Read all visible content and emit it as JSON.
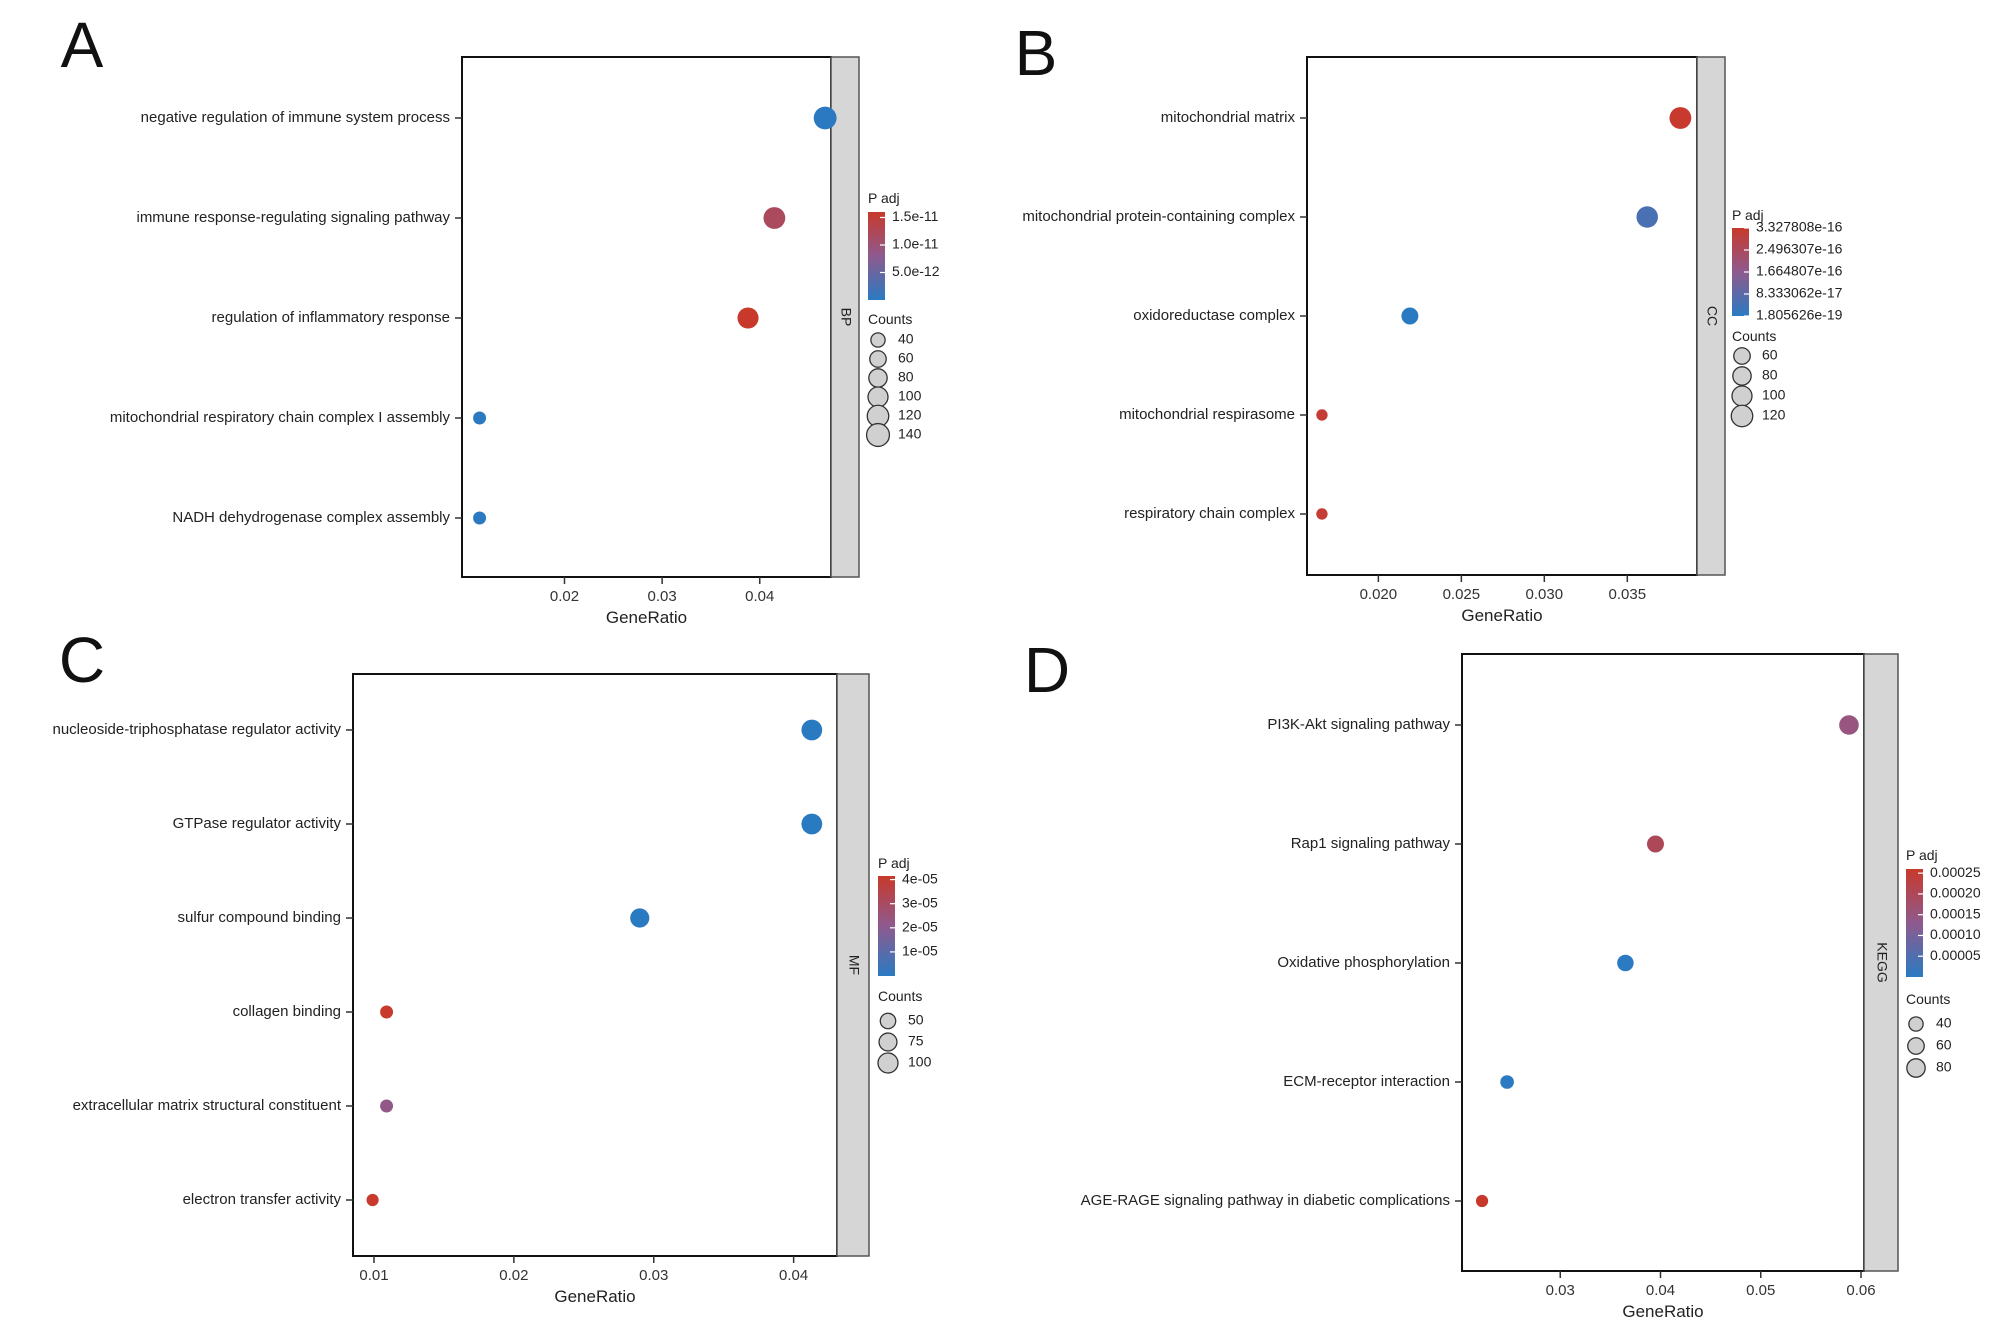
{
  "chart_data": [
    {
      "panel": "A",
      "type": "scatter",
      "title": "",
      "xlabel": "GeneRatio",
      "ylabel": "",
      "facet": "BP",
      "xlim": [
        0.0095,
        0.0473
      ],
      "xticks": [
        0.02,
        0.03,
        0.04
      ],
      "xtick_labels": [
        "0.02",
        "0.03",
        "0.04"
      ],
      "categories": [
        "negative regulation of immune system process",
        "immune response-regulating signaling pathway",
        "regulation of inflammatory response",
        "mitochondrial respiratory chain complex I assembly",
        "NADH dehydrogenase complex assembly"
      ],
      "x": [
        0.0467,
        0.0415,
        0.0388,
        0.0113,
        0.0113
      ],
      "counts": [
        140,
        125,
        115,
        30,
        30
      ],
      "p_adj": [
        1e-13,
        1.2e-11,
        1.6e-11,
        1e-13,
        1e-13
      ],
      "color_legend": {
        "title": "P adj",
        "min": 0,
        "max": 1.6e-11,
        "ticks": [
          1.5e-11,
          1e-11,
          5e-12
        ],
        "labels": [
          "1.5e-11",
          "1.0e-11",
          "5.0e-12"
        ]
      },
      "size_legend": {
        "title": "Counts",
        "values": [
          40,
          60,
          80,
          100,
          120,
          140
        ],
        "labels": [
          "40",
          "60",
          "80",
          "100",
          "120",
          "140"
        ]
      }
    },
    {
      "panel": "B",
      "type": "scatter",
      "title": "",
      "xlabel": "GeneRatio",
      "ylabel": "",
      "facet": "CC",
      "xlim": [
        0.0157,
        0.0392
      ],
      "xticks": [
        0.02,
        0.025,
        0.03,
        0.035
      ],
      "xtick_labels": [
        "0.020",
        "0.025",
        "0.030",
        "0.035"
      ],
      "categories": [
        "mitochondrial matrix",
        "mitochondrial protein-containing complex",
        "oxidoreductase complex",
        "mitochondrial respirasome",
        "respiratory chain complex"
      ],
      "x": [
        0.0382,
        0.0362,
        0.0219,
        0.0166,
        0.0166
      ],
      "counts": [
        125,
        120,
        65,
        20,
        20
      ],
      "p_adj": [
        3.3e-16,
        5e-17,
        1.8e-19,
        3.2e-16,
        3.2e-16
      ],
      "color_legend": {
        "title": "P adj",
        "min": 1.805626e-19,
        "max": 3.327808e-16,
        "ticks": [
          3.327808e-16,
          2.496307e-16,
          1.664807e-16,
          8.333062e-17,
          1.805626e-19
        ],
        "labels": [
          "3.327808e-16",
          "2.496307e-16",
          "1.664807e-16",
          "8.333062e-17",
          "1.805626e-19"
        ]
      },
      "size_legend": {
        "title": "Counts",
        "values": [
          60,
          80,
          100,
          120
        ],
        "labels": [
          "60",
          "80",
          "100",
          "120"
        ]
      }
    },
    {
      "panel": "C",
      "type": "scatter",
      "title": "",
      "xlabel": "GeneRatio",
      "ylabel": "",
      "facet": "MF",
      "xlim": [
        0.0085,
        0.0431
      ],
      "xticks": [
        0.01,
        0.02,
        0.03,
        0.04
      ],
      "xtick_labels": [
        "0.01",
        "0.02",
        "0.03",
        "0.04"
      ],
      "categories": [
        "nucleoside-triphosphatase regulator activity",
        "GTPase regulator activity",
        "sulfur compound binding",
        "collagen binding",
        "extracellular matrix structural constituent",
        "electron transfer activity"
      ],
      "x": [
        0.0413,
        0.0413,
        0.029,
        0.0109,
        0.0109,
        0.0099
      ],
      "counts": [
        110,
        110,
        90,
        30,
        30,
        25
      ],
      "p_adj": [
        1e-08,
        1e-08,
        1e-08,
        4.1e-05,
        2.2e-05,
        4.1e-05
      ],
      "color_legend": {
        "title": "P adj",
        "min": 0,
        "max": 4.15e-05,
        "ticks": [
          4e-05,
          3e-05,
          2e-05,
          1e-05
        ],
        "labels": [
          "4e-05",
          "3e-05",
          "2e-05",
          "1e-05"
        ]
      },
      "size_legend": {
        "title": "Counts",
        "values": [
          50,
          75,
          100
        ],
        "labels": [
          "50",
          "75",
          "100"
        ]
      }
    },
    {
      "panel": "D",
      "type": "scatter",
      "title": "",
      "xlabel": "GeneRatio",
      "ylabel": "",
      "facet": "KEGG",
      "xlim": [
        0.0202,
        0.0603
      ],
      "xticks": [
        0.03,
        0.04,
        0.05,
        0.06
      ],
      "xtick_labels": [
        "0.03",
        "0.04",
        "0.05",
        "0.06"
      ],
      "categories": [
        "PI3K-Akt signaling pathway",
        "Rap1 signaling pathway",
        "Oxidative phosphorylation",
        "ECM-receptor interaction",
        "AGE-RAGE signaling pathway in diabetic complications"
      ],
      "x": [
        0.0588,
        0.0395,
        0.0365,
        0.0247,
        0.0222
      ],
      "counts": [
        95,
        65,
        60,
        35,
        25
      ],
      "p_adj": [
        0.00015,
        0.0002,
        1e-06,
        1e-06,
        0.00026
      ],
      "color_legend": {
        "title": "P adj",
        "min": 0,
        "max": 0.00026,
        "ticks": [
          0.00025,
          0.0002,
          0.00015,
          0.0001,
          5e-05
        ],
        "labels": [
          "0.00025",
          "0.00020",
          "0.00015",
          "0.00010",
          "0.00005"
        ]
      },
      "size_legend": {
        "title": "Counts",
        "values": [
          40,
          60,
          80
        ],
        "labels": [
          "40",
          "60",
          "80"
        ]
      }
    }
  ]
}
